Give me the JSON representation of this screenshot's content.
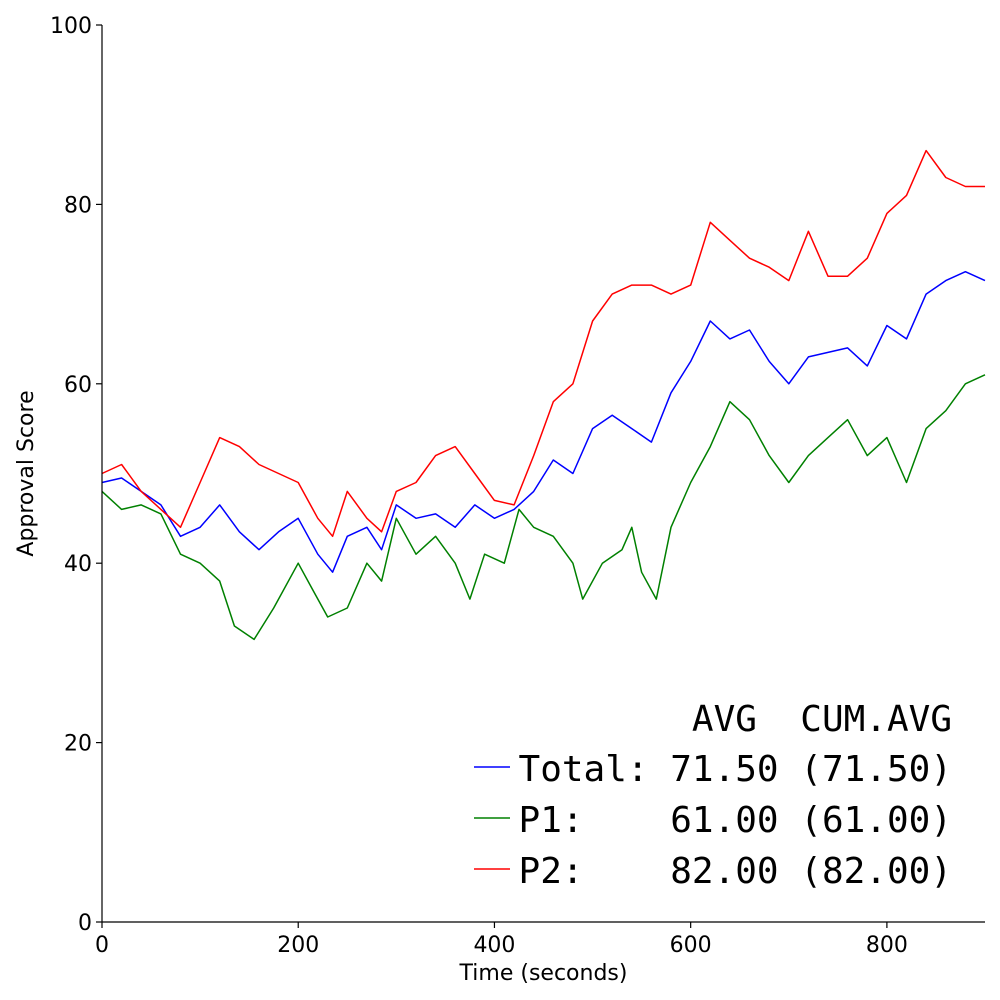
{
  "chart_data": {
    "type": "line",
    "xlabel": "Time (seconds)",
    "ylabel": "Approval Score",
    "xlim": [
      0,
      900
    ],
    "ylim": [
      0,
      100
    ],
    "x_ticks": [
      0,
      200,
      400,
      600,
      800
    ],
    "y_ticks": [
      0,
      20,
      40,
      60,
      80,
      100
    ],
    "grid": false,
    "legend": {
      "placement": "bottom-right",
      "header": "AVG  CUM.AVG",
      "entries": [
        {
          "series": "Total",
          "text": "Total: 71.50 (71.50)",
          "color": "#0000ff"
        },
        {
          "series": "P1",
          "text": "P1:    61.00 (61.00)",
          "color": "#008000"
        },
        {
          "series": "P2",
          "text": "P2:    82.00 (82.00)",
          "color": "#ff0000"
        }
      ]
    },
    "series": [
      {
        "name": "Total",
        "color": "#0000ff",
        "points": [
          [
            0,
            49
          ],
          [
            20,
            49.5
          ],
          [
            40,
            48
          ],
          [
            60,
            46.5
          ],
          [
            80,
            43
          ],
          [
            100,
            44
          ],
          [
            120,
            46.5
          ],
          [
            140,
            43.5
          ],
          [
            160,
            41.5
          ],
          [
            180,
            43.5
          ],
          [
            200,
            45
          ],
          [
            220,
            41
          ],
          [
            235,
            39
          ],
          [
            250,
            43
          ],
          [
            270,
            44
          ],
          [
            285,
            41.5
          ],
          [
            300,
            46.5
          ],
          [
            320,
            45
          ],
          [
            340,
            45.5
          ],
          [
            360,
            44
          ],
          [
            380,
            46.5
          ],
          [
            400,
            45
          ],
          [
            420,
            46
          ],
          [
            440,
            48
          ],
          [
            460,
            51.5
          ],
          [
            480,
            50
          ],
          [
            500,
            55
          ],
          [
            520,
            56.5
          ],
          [
            540,
            55
          ],
          [
            560,
            53.5
          ],
          [
            580,
            59
          ],
          [
            600,
            62.5
          ],
          [
            620,
            67
          ],
          [
            640,
            65
          ],
          [
            660,
            66
          ],
          [
            680,
            62.5
          ],
          [
            700,
            60
          ],
          [
            720,
            63
          ],
          [
            740,
            63.5
          ],
          [
            760,
            64
          ],
          [
            780,
            62
          ],
          [
            800,
            66.5
          ],
          [
            820,
            65
          ],
          [
            840,
            70
          ],
          [
            860,
            71.5
          ],
          [
            880,
            72.5
          ],
          [
            900,
            71.5
          ]
        ]
      },
      {
        "name": "P1",
        "color": "#008000",
        "points": [
          [
            0,
            48
          ],
          [
            20,
            46
          ],
          [
            40,
            46.5
          ],
          [
            60,
            45.5
          ],
          [
            80,
            41
          ],
          [
            100,
            40
          ],
          [
            120,
            38
          ],
          [
            135,
            33
          ],
          [
            155,
            31.5
          ],
          [
            175,
            35
          ],
          [
            200,
            40
          ],
          [
            215,
            37
          ],
          [
            230,
            34
          ],
          [
            250,
            35
          ],
          [
            270,
            40
          ],
          [
            285,
            38
          ],
          [
            300,
            45
          ],
          [
            320,
            41
          ],
          [
            340,
            43
          ],
          [
            360,
            40
          ],
          [
            375,
            36
          ],
          [
            390,
            41
          ],
          [
            410,
            40
          ],
          [
            425,
            46
          ],
          [
            440,
            44
          ],
          [
            460,
            43
          ],
          [
            480,
            40
          ],
          [
            490,
            36
          ],
          [
            510,
            40
          ],
          [
            530,
            41.5
          ],
          [
            540,
            44
          ],
          [
            550,
            39
          ],
          [
            565,
            36
          ],
          [
            580,
            44
          ],
          [
            600,
            49
          ],
          [
            620,
            53
          ],
          [
            640,
            58
          ],
          [
            660,
            56
          ],
          [
            680,
            52
          ],
          [
            700,
            49
          ],
          [
            720,
            52
          ],
          [
            740,
            54
          ],
          [
            760,
            56
          ],
          [
            780,
            52
          ],
          [
            800,
            54
          ],
          [
            820,
            49
          ],
          [
            840,
            55
          ],
          [
            860,
            57
          ],
          [
            880,
            60
          ],
          [
            900,
            61
          ]
        ]
      },
      {
        "name": "P2",
        "color": "#ff0000",
        "points": [
          [
            0,
            50
          ],
          [
            20,
            51
          ],
          [
            40,
            48
          ],
          [
            60,
            46
          ],
          [
            80,
            44
          ],
          [
            100,
            49
          ],
          [
            120,
            54
          ],
          [
            140,
            53
          ],
          [
            160,
            51
          ],
          [
            180,
            50
          ],
          [
            200,
            49
          ],
          [
            220,
            45
          ],
          [
            235,
            43
          ],
          [
            250,
            48
          ],
          [
            270,
            45
          ],
          [
            285,
            43.5
          ],
          [
            300,
            48
          ],
          [
            320,
            49
          ],
          [
            340,
            52
          ],
          [
            360,
            53
          ],
          [
            380,
            50
          ],
          [
            400,
            47
          ],
          [
            420,
            46.5
          ],
          [
            440,
            52
          ],
          [
            460,
            58
          ],
          [
            480,
            60
          ],
          [
            500,
            67
          ],
          [
            520,
            70
          ],
          [
            540,
            71
          ],
          [
            560,
            71
          ],
          [
            580,
            70
          ],
          [
            600,
            71
          ],
          [
            620,
            78
          ],
          [
            640,
            76
          ],
          [
            660,
            74
          ],
          [
            680,
            73
          ],
          [
            700,
            71.5
          ],
          [
            720,
            77
          ],
          [
            740,
            72
          ],
          [
            760,
            72
          ],
          [
            780,
            74
          ],
          [
            800,
            79
          ],
          [
            820,
            81
          ],
          [
            840,
            86
          ],
          [
            860,
            83
          ],
          [
            880,
            82
          ],
          [
            900,
            82
          ]
        ]
      }
    ]
  }
}
